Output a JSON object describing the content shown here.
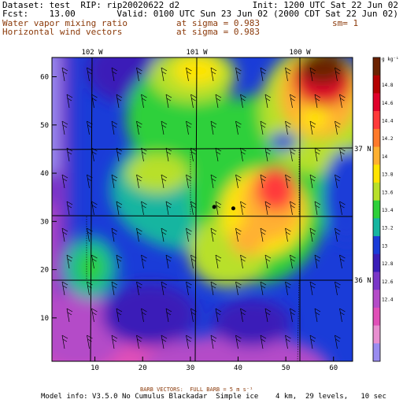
{
  "header": {
    "line1_left": "Dataset: test  RIP: rip20020622 d2",
    "line1_right": "Init: 1200 UTC Sat 22 Jun 02",
    "line2_left": "Fcst:    13.00",
    "line2_right": "Valid: 0100 UTC Sun 23 Jun 02 (2000 CDT Sat 22 Jun 02)",
    "line3_left": "Water vapor mixing ratio",
    "line3_mid": "at sigma = 0.983",
    "line3_right": "sm= 1",
    "line4_left": "Horizontal wind vectors",
    "line4_mid": "at sigma = 0.983"
  },
  "map": {
    "longitude_labels": [
      "102 W",
      "101 W",
      "100 W"
    ],
    "latitude_labels": [
      "37 N",
      "36 N"
    ],
    "x_ticks": [
      "10",
      "20",
      "30",
      "40",
      "50",
      "60"
    ],
    "y_ticks": [
      "10",
      "20",
      "30",
      "40",
      "50",
      "60"
    ],
    "points": [
      [
        35,
        33
      ],
      [
        39,
        32.7
      ]
    ]
  },
  "colorbar": {
    "unit": "g kg⁻¹",
    "labels": [
      "14.8",
      "14.6",
      "14.4",
      "14.2",
      "14",
      "13.8",
      "13.6",
      "13.4",
      "13.2",
      "13",
      "12.8",
      "12.6",
      "12.4"
    ],
    "colors": [
      "#6b2200",
      "#b40000",
      "#e0002a",
      "#ff3a3a",
      "#ff7a2a",
      "#ffb030",
      "#ffe400",
      "#b8e02a",
      "#2ed03a",
      "#16b5a0",
      "#1a3cd8",
      "#3a1eb8",
      "#7a36c8",
      "#b44cc8",
      "#e050b8",
      "#e88fd0",
      "#9a8cf0"
    ]
  },
  "footer": {
    "barb_label": "BARB VECTORS:  FULL BARB = 5 m s⁻¹",
    "model_info": "Model info: V3.5.0 No Cumulus Blackadar  Simple ice    4 km,  29 levels,   10 sec"
  }
}
